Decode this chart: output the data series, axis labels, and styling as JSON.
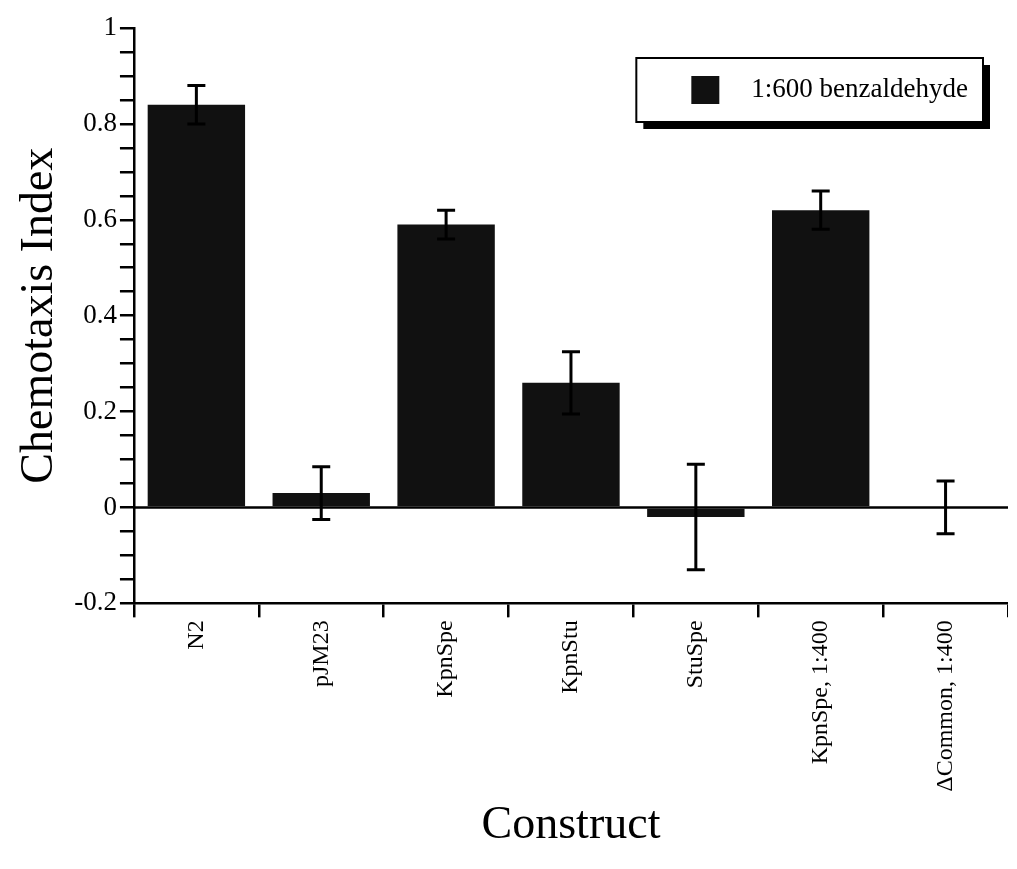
{
  "chart_data": {
    "type": "bar",
    "xlabel": "Construct",
    "ylabel": "Chemotaxis Index",
    "categories": [
      "N2",
      "pJM23",
      "KpnSpe",
      "KpnStu",
      "StuSpe",
      "KpnSpe, 1:400",
      "ΔCommon, 1:400"
    ],
    "series": [
      {
        "name": "1:600 benzaldehyde",
        "color": "#111111",
        "values": [
          0.84,
          0.03,
          0.59,
          0.26,
          -0.02,
          0.62,
          0
        ],
        "errors": [
          0.04,
          0.055,
          0.03,
          0.065,
          0.11,
          0.04,
          0.055
        ]
      }
    ],
    "ylim": [
      -0.2,
      1
    ],
    "yticks": [
      -0.2,
      {
        "value": -0.15,
        "label": null
      },
      {
        "value": -0.1,
        "label": null
      },
      {
        "value": -0.05,
        "label": null
      },
      0,
      {
        "value": 0.05,
        "label": null
      },
      {
        "value": 0.1,
        "label": null
      },
      {
        "value": 0.15,
        "label": null
      },
      0.2,
      {
        "value": 0.25,
        "label": null
      },
      {
        "value": 0.3,
        "label": null
      },
      {
        "value": 0.35,
        "label": null
      },
      0.4,
      {
        "value": 0.45,
        "label": null
      },
      {
        "value": 0.5,
        "label": null
      },
      {
        "value": 0.55,
        "label": null
      },
      0.6,
      {
        "value": 0.65,
        "label": null
      },
      {
        "value": 0.7,
        "label": null
      },
      {
        "value": 0.75,
        "label": null
      },
      0.8,
      {
        "value": 0.85,
        "label": null
      },
      {
        "value": 0.9,
        "label": null
      },
      {
        "value": 0.95,
        "label": null
      },
      1
    ],
    "ref_lines": [
      {
        "axis": "y",
        "value": 0
      }
    ],
    "grid": false,
    "legend": "top right"
  }
}
